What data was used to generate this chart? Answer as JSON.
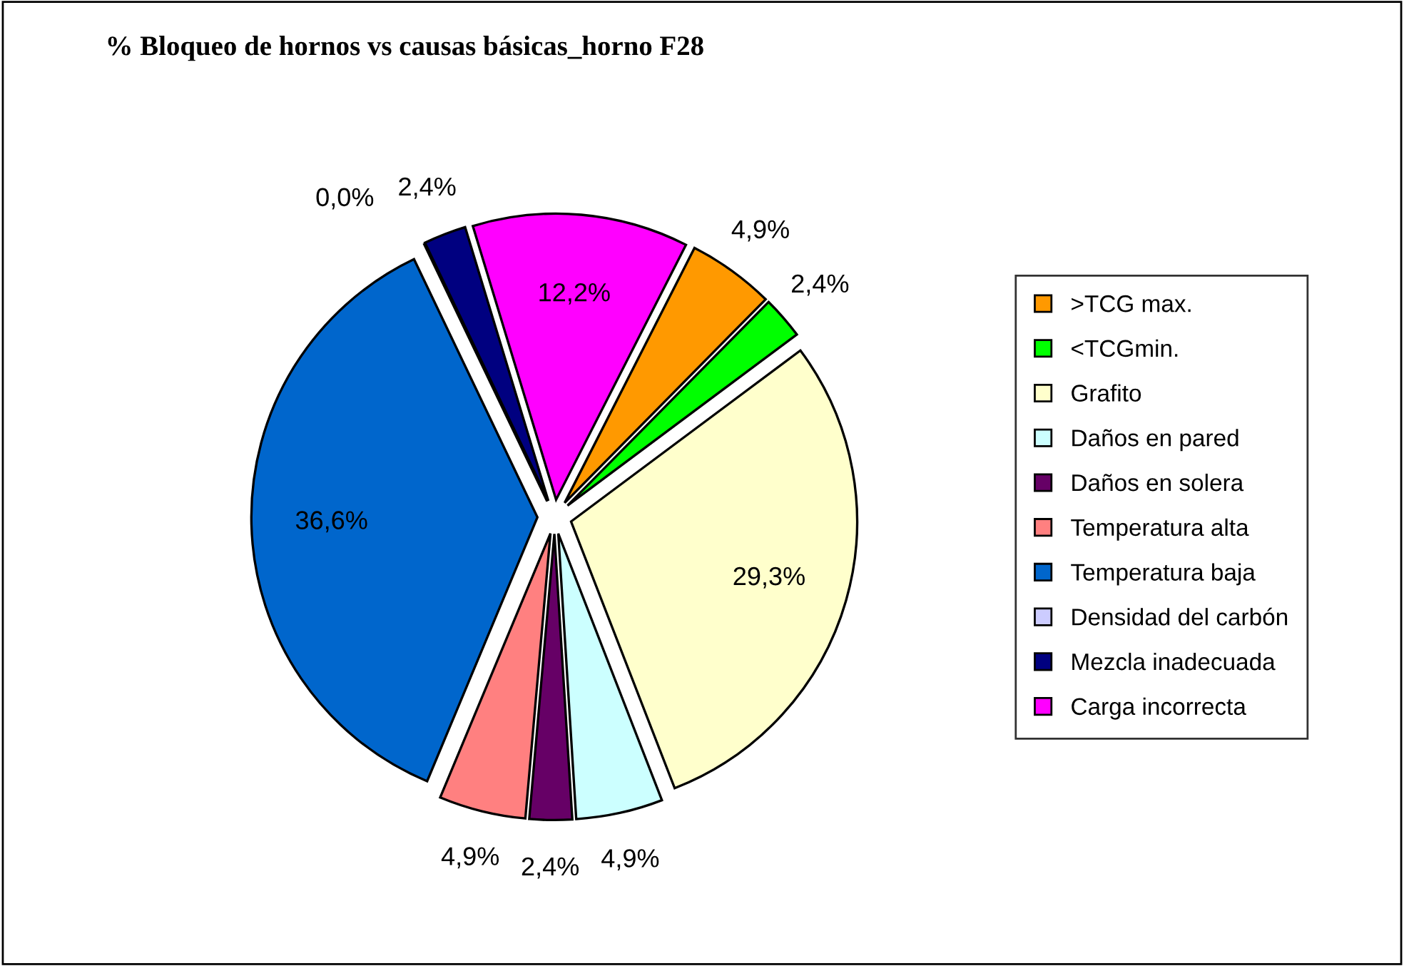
{
  "chart_data": {
    "type": "pie",
    "title": "% Bloqueo de hornos vs causas básicas_horno F28",
    "categories": [
      ">TCG max.",
      "<TCGmin.",
      "Grafito",
      "Daños en pared",
      "Daños en solera",
      "Temperatura alta",
      "Temperatura baja",
      "Densidad del carbón",
      "Mezcla inadecuada",
      "Carga incorrecta"
    ],
    "values": [
      4.9,
      2.4,
      29.3,
      4.9,
      2.4,
      4.9,
      36.6,
      0.0,
      2.4,
      12.2
    ],
    "colors": [
      "#ff9900",
      "#00ff00",
      "#ffffcc",
      "#ccffff",
      "#660066",
      "#ff8080",
      "#0066cc",
      "#ccccff",
      "#000080",
      "#ff00ff"
    ],
    "value_labels": [
      "4,9%",
      "2,4%",
      "29,3%",
      "4,9%",
      "2,4%",
      "4,9%",
      "36,6%",
      "0,0%",
      "2,4%",
      "12,2%"
    ],
    "legend": "right"
  }
}
